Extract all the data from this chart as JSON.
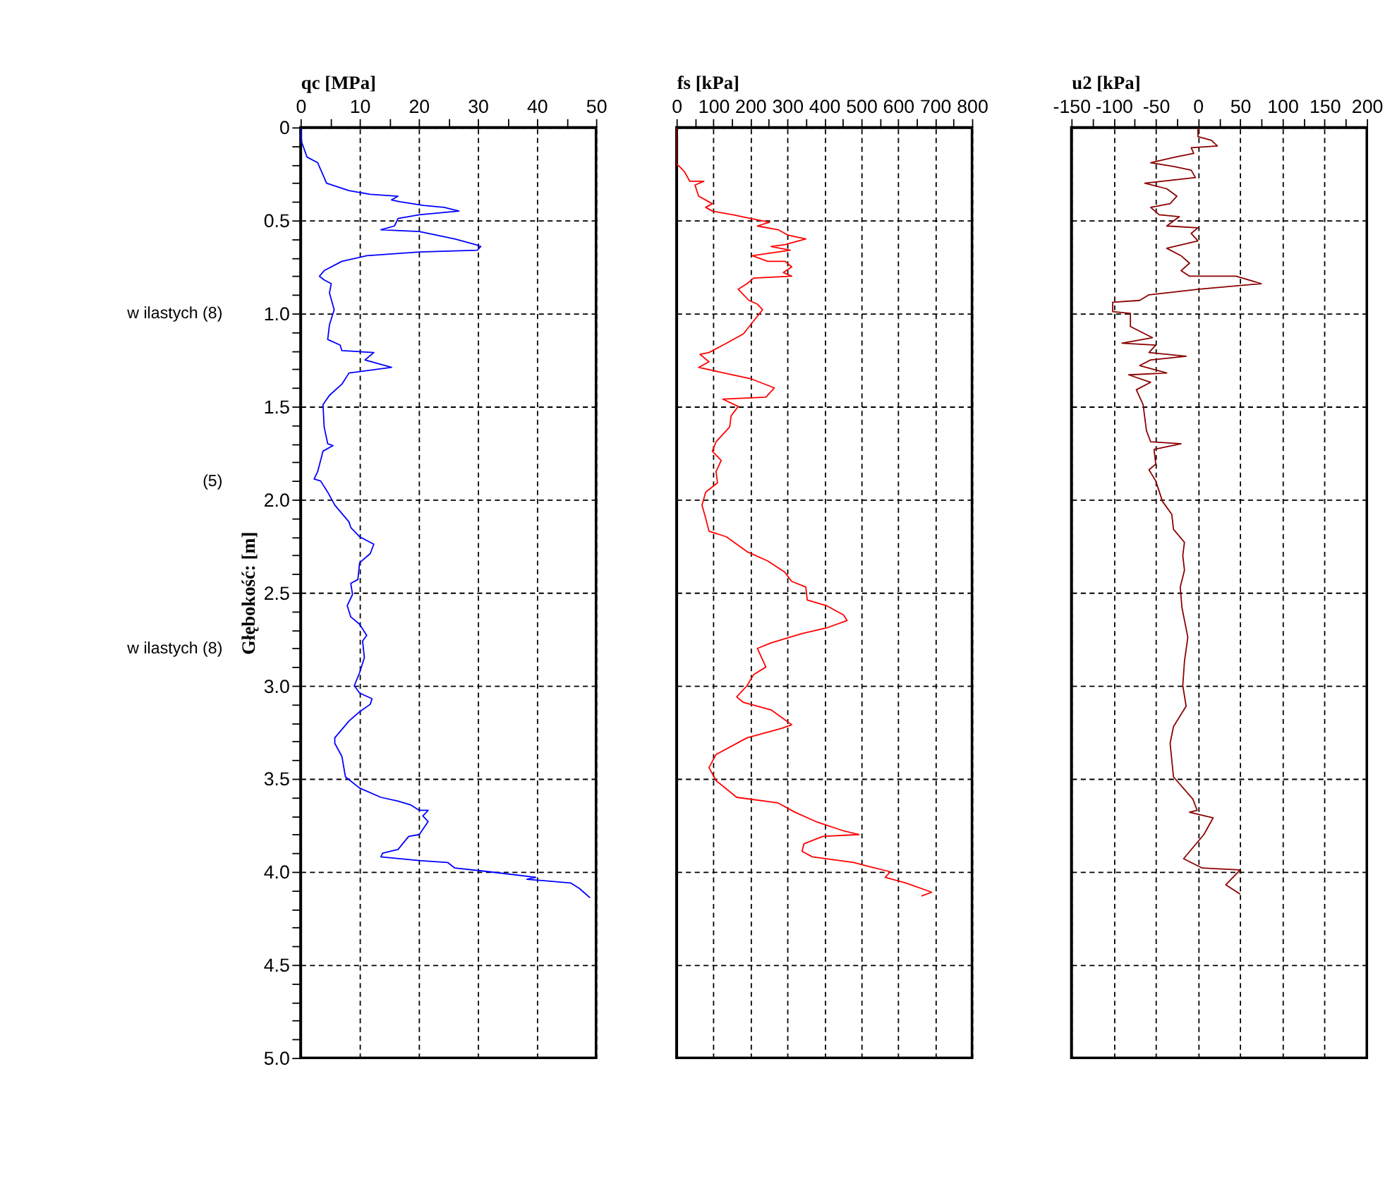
{
  "chart_data": [
    {
      "type": "line",
      "xlabel": "qc [MPa]",
      "ylabel": "Głębokość: [m]",
      "xlim": [
        0,
        50
      ],
      "xticks": [
        0,
        {
          "value": 5,
          "label": null
        },
        10,
        {
          "value": 15,
          "label": null
        },
        20,
        {
          "value": 25,
          "label": null
        },
        30,
        {
          "value": 35,
          "label": null
        },
        40,
        {
          "value": 45,
          "label": null
        },
        50
      ],
      "ylim": [
        5,
        0
      ],
      "yticks": [
        0,
        {
          "value": 0.1,
          "label": null
        },
        {
          "value": 0.2,
          "label": null
        },
        {
          "value": 0.3,
          "label": null
        },
        {
          "value": 0.4,
          "label": null
        },
        0.5,
        {
          "value": 0.6,
          "label": null
        },
        {
          "value": 0.7,
          "label": null
        },
        {
          "value": 0.8,
          "label": null
        },
        {
          "value": 0.9,
          "label": null
        },
        {
          "value": 1,
          "label": "1.0"
        },
        {
          "value": 1.1,
          "label": null
        },
        {
          "value": 1.2,
          "label": null
        },
        {
          "value": 1.3,
          "label": null
        },
        {
          "value": 1.4,
          "label": null
        },
        1.5,
        {
          "value": 1.6,
          "label": null
        },
        {
          "value": 1.7,
          "label": null
        },
        {
          "value": 1.8,
          "label": null
        },
        {
          "value": 1.9,
          "label": null
        },
        {
          "value": 2,
          "label": "2.0"
        },
        {
          "value": 2.1,
          "label": null
        },
        {
          "value": 2.2,
          "label": null
        },
        {
          "value": 2.3,
          "label": null
        },
        {
          "value": 2.4,
          "label": null
        },
        2.5,
        {
          "value": 2.6,
          "label": null
        },
        {
          "value": 2.7,
          "label": null
        },
        {
          "value": 2.8,
          "label": null
        },
        {
          "value": 2.9,
          "label": null
        },
        {
          "value": 3,
          "label": "3.0"
        },
        {
          "value": 3.1,
          "label": null
        },
        {
          "value": 3.2,
          "label": null
        },
        {
          "value": 3.3,
          "label": null
        },
        {
          "value": 3.4,
          "label": null
        },
        3.5,
        {
          "value": 3.6,
          "label": null
        },
        {
          "value": 3.7,
          "label": null
        },
        {
          "value": 3.8,
          "label": null
        },
        {
          "value": 3.9,
          "label": null
        },
        {
          "value": 4,
          "label": "4.0"
        },
        {
          "value": 4.1,
          "label": null
        },
        {
          "value": 4.2,
          "label": null
        },
        {
          "value": 4.3,
          "label": null
        },
        {
          "value": 4.4,
          "label": null
        },
        4.5,
        {
          "value": 4.6,
          "label": null
        },
        {
          "value": 4.7,
          "label": null
        },
        {
          "value": 4.8,
          "label": null
        },
        {
          "value": 4.9,
          "label": null
        },
        {
          "value": 5,
          "label": "5.0"
        }
      ],
      "grid": true,
      "annotations": [
        "w ilastych (8)",
        "(5)",
        "w ilastych (8)"
      ],
      "series": [
        {
          "color": "#0000ff",
          "x": [
            0,
            0.2,
            1.1,
            2.9,
            4.0,
            4.4,
            8.2,
            11.8,
            16.5,
            15.4,
            16.8,
            20.8,
            24.3,
            26.8,
            20.1,
            16.5,
            15.9,
            13.6,
            20.1,
            26.1,
            29.6,
            30.5,
            29.9,
            20.1,
            11.2,
            7.0,
            4.0,
            3.2,
            4.0,
            5.2,
            4.9,
            5.7,
            4.9,
            4.6,
            6.7,
            7.0,
            12.4,
            10.9,
            15.4,
            8.2,
            7.0,
            4.9,
            3.8,
            4.0,
            4.6,
            5.5,
            3.8,
            2.9,
            2.3,
            3.4,
            4.6,
            5.8,
            8.2,
            8.5,
            10.0,
            12.4,
            11.8,
            10.0,
            9.7,
            8.5,
            8.8,
            7.9,
            8.5,
            10.0,
            11.2,
            10.5,
            10.8,
            10.0,
            9.1,
            10.0,
            12.1,
            11.8,
            10.0,
            8.2,
            5.8,
            5.8,
            7.0,
            7.6,
            10.0,
            13.6,
            16.5,
            18.6,
            20.1,
            21.6,
            20.7,
            21.6,
            20.1,
            18.3,
            16.5,
            13.9,
            13.6,
            20.1,
            24.9,
            26.1,
            32.0,
            39.8,
            38.3,
            45.7,
            47.2,
            49.0
          ],
          "values": [
            0,
            0.08,
            0.16,
            0.19,
            0.27,
            0.3,
            0.34,
            0.36,
            0.37,
            0.39,
            0.4,
            0.42,
            0.43,
            0.45,
            0.47,
            0.49,
            0.53,
            0.55,
            0.56,
            0.6,
            0.63,
            0.64,
            0.66,
            0.67,
            0.69,
            0.72,
            0.77,
            0.8,
            0.82,
            0.84,
            0.89,
            0.98,
            1.06,
            1.14,
            1.17,
            1.2,
            1.21,
            1.25,
            1.29,
            1.32,
            1.38,
            1.44,
            1.49,
            1.61,
            1.7,
            1.71,
            1.74,
            1.85,
            1.89,
            1.9,
            1.96,
            2.03,
            2.12,
            2.15,
            2.2,
            2.24,
            2.29,
            2.34,
            2.43,
            2.45,
            2.51,
            2.57,
            2.63,
            2.67,
            2.73,
            2.76,
            2.85,
            2.93,
            3.0,
            3.04,
            3.07,
            3.1,
            3.14,
            3.19,
            3.28,
            3.31,
            3.38,
            3.49,
            3.55,
            3.6,
            3.62,
            3.64,
            3.67,
            3.67,
            3.7,
            3.73,
            3.8,
            3.81,
            3.88,
            3.9,
            3.92,
            3.94,
            3.95,
            3.98,
            4.0,
            4.03,
            4.04,
            4.06,
            4.09,
            4.14
          ]
        }
      ]
    },
    {
      "type": "line",
      "xlabel": "fs [kPa]",
      "xlim": [
        0,
        800
      ],
      "xticks": [
        0,
        {
          "value": 50,
          "label": null
        },
        100,
        {
          "value": 150,
          "label": null
        },
        200,
        {
          "value": 250,
          "label": null
        },
        300,
        {
          "value": 350,
          "label": null
        },
        400,
        {
          "value": 450,
          "label": null
        },
        500,
        {
          "value": 550,
          "label": null
        },
        600,
        {
          "value": 650,
          "label": null
        },
        700,
        {
          "value": 750,
          "label": null
        },
        800
      ],
      "ylim": [
        5,
        0
      ],
      "yticks": [
        0,
        0.5,
        1,
        1.5,
        2,
        2.5,
        3,
        3.5,
        4,
        4.5,
        5
      ],
      "grid": true,
      "tick_labels": "x",
      "series": [
        {
          "color": "#ff0000",
          "x": [
            0,
            0,
            8,
            22,
            36,
            74,
            50,
            60,
            97,
            79,
            97,
            153,
            200,
            252,
            219,
            275,
            303,
            350,
            294,
            256,
            308,
            205,
            247,
            294,
            312,
            289,
            312,
            209,
            191,
            167,
            196,
            219,
            233,
            209,
            181,
            135,
            88,
            64,
            88,
            60,
            153,
            200,
            265,
            242,
            125,
            167,
            148,
            144,
            107,
            97,
            121,
            107,
            111,
            79,
            69,
            79,
            88,
            135,
            191,
            247,
            293,
            312,
            350,
            354,
            406,
            452,
            462,
            406,
            340,
            256,
            219,
            242,
            209,
            191,
            163,
            181,
            256,
            312,
            284,
            191,
            107,
            88,
            107,
            163,
            275,
            321,
            377,
            452,
            494,
            396,
            345,
            340,
            368,
            480,
            518,
            579,
            565,
            621,
            691,
            663
          ],
          "values": [
            0,
            0.2,
            0.21,
            0.24,
            0.29,
            0.29,
            0.31,
            0.37,
            0.41,
            0.43,
            0.45,
            0.47,
            0.49,
            0.51,
            0.53,
            0.55,
            0.58,
            0.6,
            0.63,
            0.64,
            0.66,
            0.69,
            0.72,
            0.72,
            0.75,
            0.78,
            0.8,
            0.81,
            0.84,
            0.87,
            0.93,
            0.95,
            0.98,
            1.04,
            1.11,
            1.16,
            1.21,
            1.22,
            1.26,
            1.29,
            1.33,
            1.35,
            1.4,
            1.45,
            1.46,
            1.5,
            1.55,
            1.61,
            1.69,
            1.74,
            1.79,
            1.85,
            1.91,
            1.96,
            2.03,
            2.1,
            2.17,
            2.2,
            2.28,
            2.33,
            2.39,
            2.44,
            2.47,
            2.54,
            2.57,
            2.62,
            2.65,
            2.69,
            2.72,
            2.77,
            2.8,
            2.9,
            2.94,
            3.0,
            3.06,
            3.09,
            3.13,
            3.21,
            3.23,
            3.28,
            3.37,
            3.44,
            3.51,
            3.6,
            3.63,
            3.68,
            3.73,
            3.78,
            3.8,
            3.81,
            3.85,
            3.89,
            3.92,
            3.95,
            3.97,
            4.0,
            4.03,
            4.06,
            4.11,
            4.13
          ]
        }
      ]
    },
    {
      "type": "line",
      "xlabel": "u2 [kPa]",
      "xlim": [
        -150,
        200
      ],
      "xticks": [
        -150,
        {
          "value": -125,
          "label": null
        },
        -100,
        {
          "value": -75,
          "label": null
        },
        -50,
        {
          "value": -25,
          "label": null
        },
        0,
        {
          "value": 25,
          "label": null
        },
        50,
        {
          "value": 75,
          "label": null
        },
        100,
        {
          "value": 125,
          "label": null
        },
        150,
        {
          "value": 175,
          "label": null
        },
        200
      ],
      "ylim": [
        5,
        0
      ],
      "yticks": [
        0,
        0.5,
        1,
        1.5,
        2,
        2.5,
        3,
        3.5,
        4,
        4.5,
        5
      ],
      "grid": true,
      "tick_labels": "x",
      "series": [
        {
          "color": "#8b0000",
          "x": [
            0,
            0,
            16,
            23,
            -8,
            -5,
            -27,
            -56,
            -29,
            -8,
            -3,
            -63,
            -37,
            -25,
            -33,
            -56,
            -46,
            -22,
            -37,
            0,
            -8,
            0,
            -37,
            -20,
            -10,
            -20,
            -10,
            45,
            75,
            1,
            -58,
            -69,
            -101,
            -101,
            -80,
            -80,
            -54,
            -90,
            -50,
            -58,
            -14,
            -56,
            -69,
            -37,
            -82,
            -56,
            -73,
            -65,
            -61,
            -56,
            -20,
            -52,
            -50,
            -58,
            -50,
            -42,
            -31,
            -29,
            -16,
            -18,
            -16,
            -21,
            -19,
            -12,
            -16,
            -18,
            -14,
            -29,
            -33,
            -29,
            -6,
            -1,
            -10,
            18,
            7,
            -6,
            -17,
            5,
            50,
            33,
            50
          ],
          "values": [
            0,
            0.05,
            0.07,
            0.1,
            0.11,
            0.14,
            0.16,
            0.19,
            0.21,
            0.23,
            0.27,
            0.3,
            0.33,
            0.37,
            0.41,
            0.43,
            0.47,
            0.48,
            0.53,
            0.54,
            0.57,
            0.61,
            0.65,
            0.69,
            0.73,
            0.77,
            0.8,
            0.8,
            0.84,
            0.87,
            0.9,
            0.93,
            0.94,
            0.99,
            1.0,
            1.07,
            1.13,
            1.16,
            1.17,
            1.21,
            1.23,
            1.25,
            1.28,
            1.32,
            1.33,
            1.37,
            1.41,
            1.49,
            1.63,
            1.69,
            1.7,
            1.73,
            1.81,
            1.84,
            1.9,
            2.01,
            2.08,
            2.16,
            2.23,
            2.3,
            2.38,
            2.47,
            2.58,
            2.74,
            2.87,
            3.0,
            3.11,
            3.22,
            3.31,
            3.49,
            3.61,
            3.67,
            3.68,
            3.71,
            3.8,
            3.87,
            3.93,
            3.98,
            3.99,
            4.07,
            4.12
          ]
        }
      ]
    }
  ]
}
